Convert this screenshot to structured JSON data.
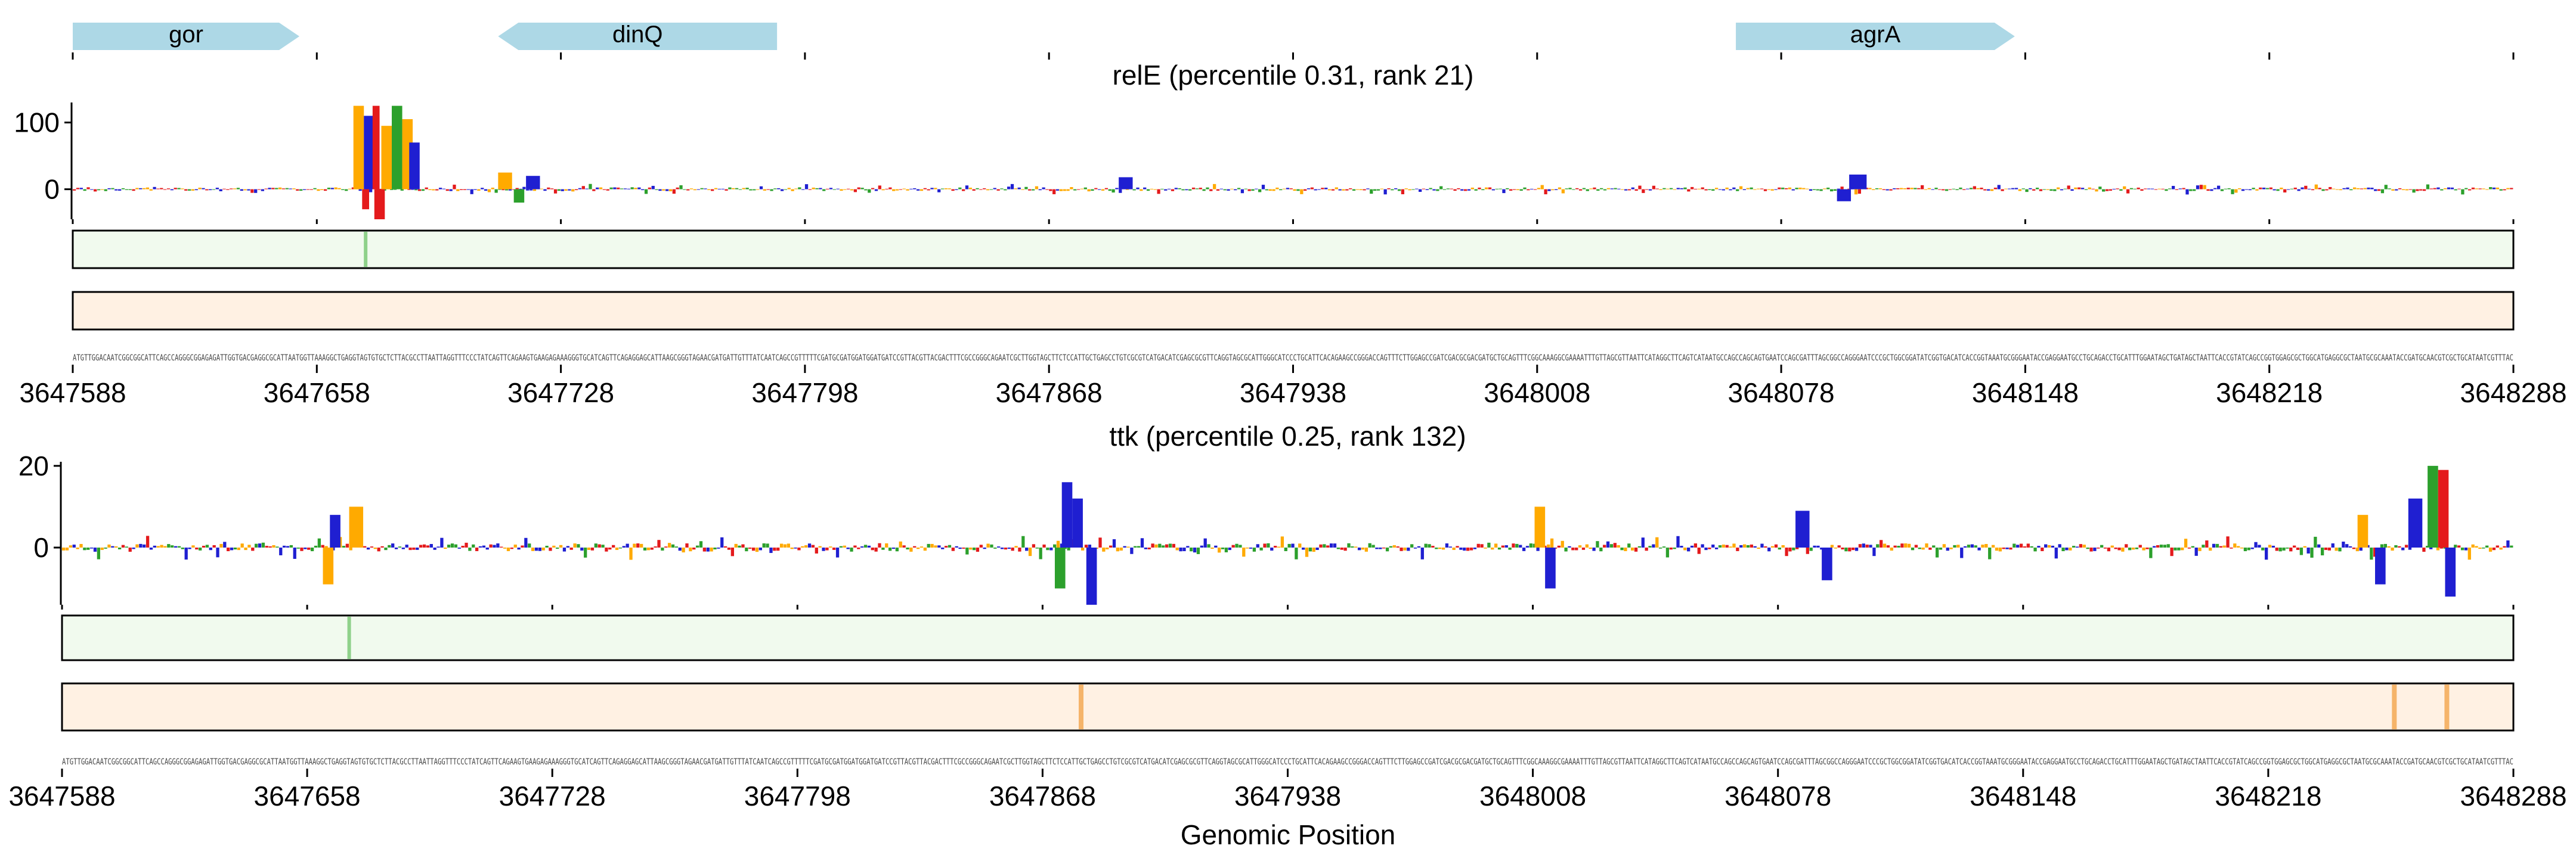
{
  "genes": [
    {
      "name": "gor",
      "start": 3647588,
      "end": 3647653,
      "strand": "+"
    },
    {
      "name": "dinQ",
      "start": 3647710,
      "end": 3647790,
      "strand": "-"
    },
    {
      "name": "agrA",
      "start": 3648065,
      "end": 3648145,
      "strand": "+"
    }
  ],
  "xlabel": "Genomic Position",
  "colors": {
    "A": "#2ca02c",
    "C": "#1f1fd1",
    "G": "#ffaa00",
    "T": "#e41a1c",
    "gene": "#add8e6",
    "heat_green_bg": "#f1faee",
    "heat_green_mark": "#8fd18a",
    "heat_orange_bg": "#fff1e3",
    "heat_orange_mark": "#f5b46a"
  },
  "sequence_row_1": "ATGTTGGACAATCGGCGGCATTCAGCCAGGGCGGAGAGATTGGTGACGAGGCGCATTAATGGTTAAAGGCTGAGGTAGTGTGCTCTTACGCCTTAATTAGGTTTCCCTATCAGTTCAGAAGTGAAGAGAAAGGGTGCATCAGTTCAGAGGAGCATTAAGCGGGTAGAACGATGATTGTTTATCAATCAGCCGTTTTTCGATGCGATGGATGGATGATCCGTTACGTTACGACTTTCGCCGGGCAGAATCGCTTGGTAGCTTCTCCATTGCTGAGCCTGTCGCGTCATGACATCGAGCGCGTTCAGGTAGCGCATTGGGCATCCCTGCATTCACAGAAGCCGGGACCAGTTTCTTGGAGCCGATCGACGCGACGATGCTGCAGTTTCGGCAAAGGCGAAAATTTGTTAGCGTTAATTCATAGGCTTCAGTCATAATGCCAGCCAGCAGTGAATCCAGCGATTTAGCGGCCAGGGAATCCCGCTGGCGGATATCGGTGACATCACCGGTAAATGCGGGAATACCGAGGAATGCCTGCAGACCTGCATTTGGAATAGCTGATAGCTAATTCACCGTATCAGCCGGTGGAGCGCTGGCATGAGGCGCTAATGCGCAAATACCGATGCAACGTCGCTGCATAATCGTTTAC",
  "sequence_row_2": "ATGTTGGACAATCGGCGGCATTCAGCCAGGGCGGAGAGATTGGTGACGAGGCGCATTAATGGTTAAAGGCTGAGGTAGTGTGCTCTTACGCCTTAATTAGGTTTCCCTATCAGTTCAGAAGTGAAGAGAAAGGGTGCATCAGTTCAGAGGAGCATTAAGCGGGTAGAACGATGATTGTTTATCAATCAGCCGTTTTTCGATGCGATGGATGGATGATCCGTTACGTTACGACTTTCGCCGGGCAGAATCGCTTGGTAGCTTCTCCATTGCTGAGCCTGTCGCGTCATGACATCGAGCGCGTTCAGGTAGCGCATTGGGCATCCCTGCATTCACAGAAGCCGGGACCAGTTTCTTGGAGCCGATCGACGCGACGATGCTGCAGTTTCGGCAAAGGCGAAAATTTGTTAGCGTTAATTCATAGGCTTCAGTCATAATGCCAGCCAGCAGTGAATCCAGCGATTTAGCGGCCAGGGAATCCCGCTGGCGGATATCGGTGACATCACCGGTAAATGCGGGAATACCGAGGAATGCCTGCAGACCTGCATTTGGAATAGCTGATAGCTAATTCACCGTATCAGCCGGTGGAGCGCTGGCATGAGGCGCTAATGCGCAAATACCGATGCAACGTCGCTGCATAATCGTTTAC",
  "chart_data": [
    {
      "type": "logo",
      "title": "relE (percentile 0.31, rank 21)",
      "xlim": [
        3647588,
        3648288
      ],
      "xticks": [
        3647588,
        3647658,
        3647728,
        3647798,
        3647868,
        3647938,
        3648008,
        3648078,
        3648148,
        3648218,
        3648288
      ],
      "ylim": [
        -45,
        130
      ],
      "yticks": [
        0,
        100
      ],
      "peaks": [
        {
          "x": 3647670,
          "height": 125,
          "width": 3,
          "base": "G"
        },
        {
          "x": 3647673,
          "height": 110,
          "width": 3,
          "base": "C"
        },
        {
          "x": 3647675,
          "height": 125,
          "width": 2,
          "base": "T"
        },
        {
          "x": 3647678,
          "height": 95,
          "width": 3,
          "base": "G"
        },
        {
          "x": 3647681,
          "height": 125,
          "width": 3,
          "base": "A"
        },
        {
          "x": 3647684,
          "height": 105,
          "width": 3,
          "base": "G"
        },
        {
          "x": 3647686,
          "height": 70,
          "width": 3,
          "base": "C"
        },
        {
          "x": 3647676,
          "height": -45,
          "width": 3,
          "base": "T"
        },
        {
          "x": 3647672,
          "height": -30,
          "width": 2,
          "base": "T"
        },
        {
          "x": 3647712,
          "height": 25,
          "width": 4,
          "base": "G"
        },
        {
          "x": 3647716,
          "height": -20,
          "width": 3,
          "base": "A"
        },
        {
          "x": 3647720,
          "height": 20,
          "width": 4,
          "base": "C"
        },
        {
          "x": 3647890,
          "height": 18,
          "width": 4,
          "base": "C"
        },
        {
          "x": 3648100,
          "height": 22,
          "width": 5,
          "base": "C"
        },
        {
          "x": 3648096,
          "height": -18,
          "width": 4,
          "base": "C"
        }
      ],
      "noise_amp": 8,
      "heat_green_marks": [
        3647672
      ],
      "heat_orange_marks": []
    },
    {
      "type": "logo",
      "title": "ttk (percentile 0.25, rank 132)",
      "xlim": [
        3647588,
        3648288
      ],
      "xticks": [
        3647588,
        3647658,
        3647728,
        3647798,
        3647868,
        3647938,
        3648008,
        3648078,
        3648148,
        3648218,
        3648288
      ],
      "ylim": [
        -14,
        21
      ],
      "yticks": [
        0,
        20
      ],
      "peaks": [
        {
          "x": 3647666,
          "height": 8,
          "width": 3,
          "base": "C"
        },
        {
          "x": 3647672,
          "height": 10,
          "width": 4,
          "base": "G"
        },
        {
          "x": 3647664,
          "height": -9,
          "width": 3,
          "base": "G"
        },
        {
          "x": 3647875,
          "height": 16,
          "width": 3,
          "base": "C"
        },
        {
          "x": 3647878,
          "height": 12,
          "width": 3,
          "base": "C"
        },
        {
          "x": 3647882,
          "height": -14,
          "width": 3,
          "base": "C"
        },
        {
          "x": 3647873,
          "height": -10,
          "width": 3,
          "base": "A"
        },
        {
          "x": 3648010,
          "height": 10,
          "width": 3,
          "base": "G"
        },
        {
          "x": 3648013,
          "height": -10,
          "width": 3,
          "base": "C"
        },
        {
          "x": 3648085,
          "height": 9,
          "width": 4,
          "base": "C"
        },
        {
          "x": 3648092,
          "height": -8,
          "width": 3,
          "base": "C"
        },
        {
          "x": 3648265,
          "height": 20,
          "width": 3,
          "base": "A"
        },
        {
          "x": 3648268,
          "height": 19,
          "width": 3,
          "base": "T"
        },
        {
          "x": 3648260,
          "height": 12,
          "width": 4,
          "base": "C"
        },
        {
          "x": 3648270,
          "height": -12,
          "width": 3,
          "base": "C"
        },
        {
          "x": 3648245,
          "height": 8,
          "width": 3,
          "base": "G"
        },
        {
          "x": 3648250,
          "height": -9,
          "width": 3,
          "base": "C"
        }
      ],
      "noise_amp": 3,
      "heat_green_marks": [
        3647670
      ],
      "heat_orange_marks": [
        3647879,
        3648269,
        3648254
      ]
    }
  ]
}
